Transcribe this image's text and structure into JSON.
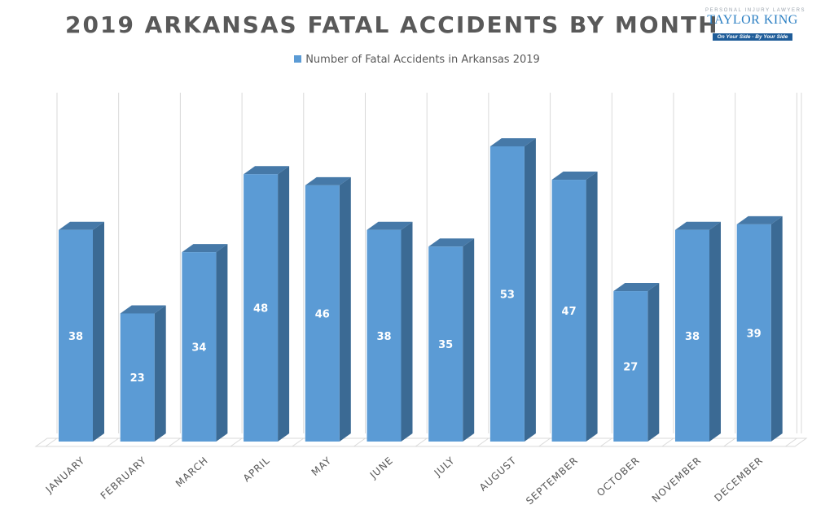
{
  "header": {
    "title": "2019 ARKANSAS FATAL ACCIDENTS BY MONTH"
  },
  "logo": {
    "tagline_top": "PERSONAL INJURY LAWYERS",
    "name": "TAYLOR KING",
    "slogan": "On Your Side - By Your Side"
  },
  "chart_data": {
    "type": "bar",
    "title": "2019 ARKANSAS FATAL ACCIDENTS BY MONTH",
    "categories": [
      "JANUARY",
      "FEBRUARY",
      "MARCH",
      "APRIL",
      "MAY",
      "JUNE",
      "JULY",
      "AUGUST",
      "SEPTEMBER",
      "OCTOBER",
      "NOVEMBER",
      "DECEMBER"
    ],
    "series": [
      {
        "name": "Number of Fatal Accidents in Arkansas 2019",
        "values": [
          38,
          23,
          34,
          48,
          46,
          38,
          35,
          53,
          47,
          27,
          38,
          39
        ]
      }
    ],
    "legend_position": "top",
    "grid": true,
    "data_labels": true,
    "colors": {
      "bar_front": "#5b9bd5",
      "bar_side": "#3b6a94",
      "bar_top": "#4679a8",
      "grid": "#d9d9d9",
      "label": "#ffffff",
      "axis_text": "#595959"
    }
  }
}
